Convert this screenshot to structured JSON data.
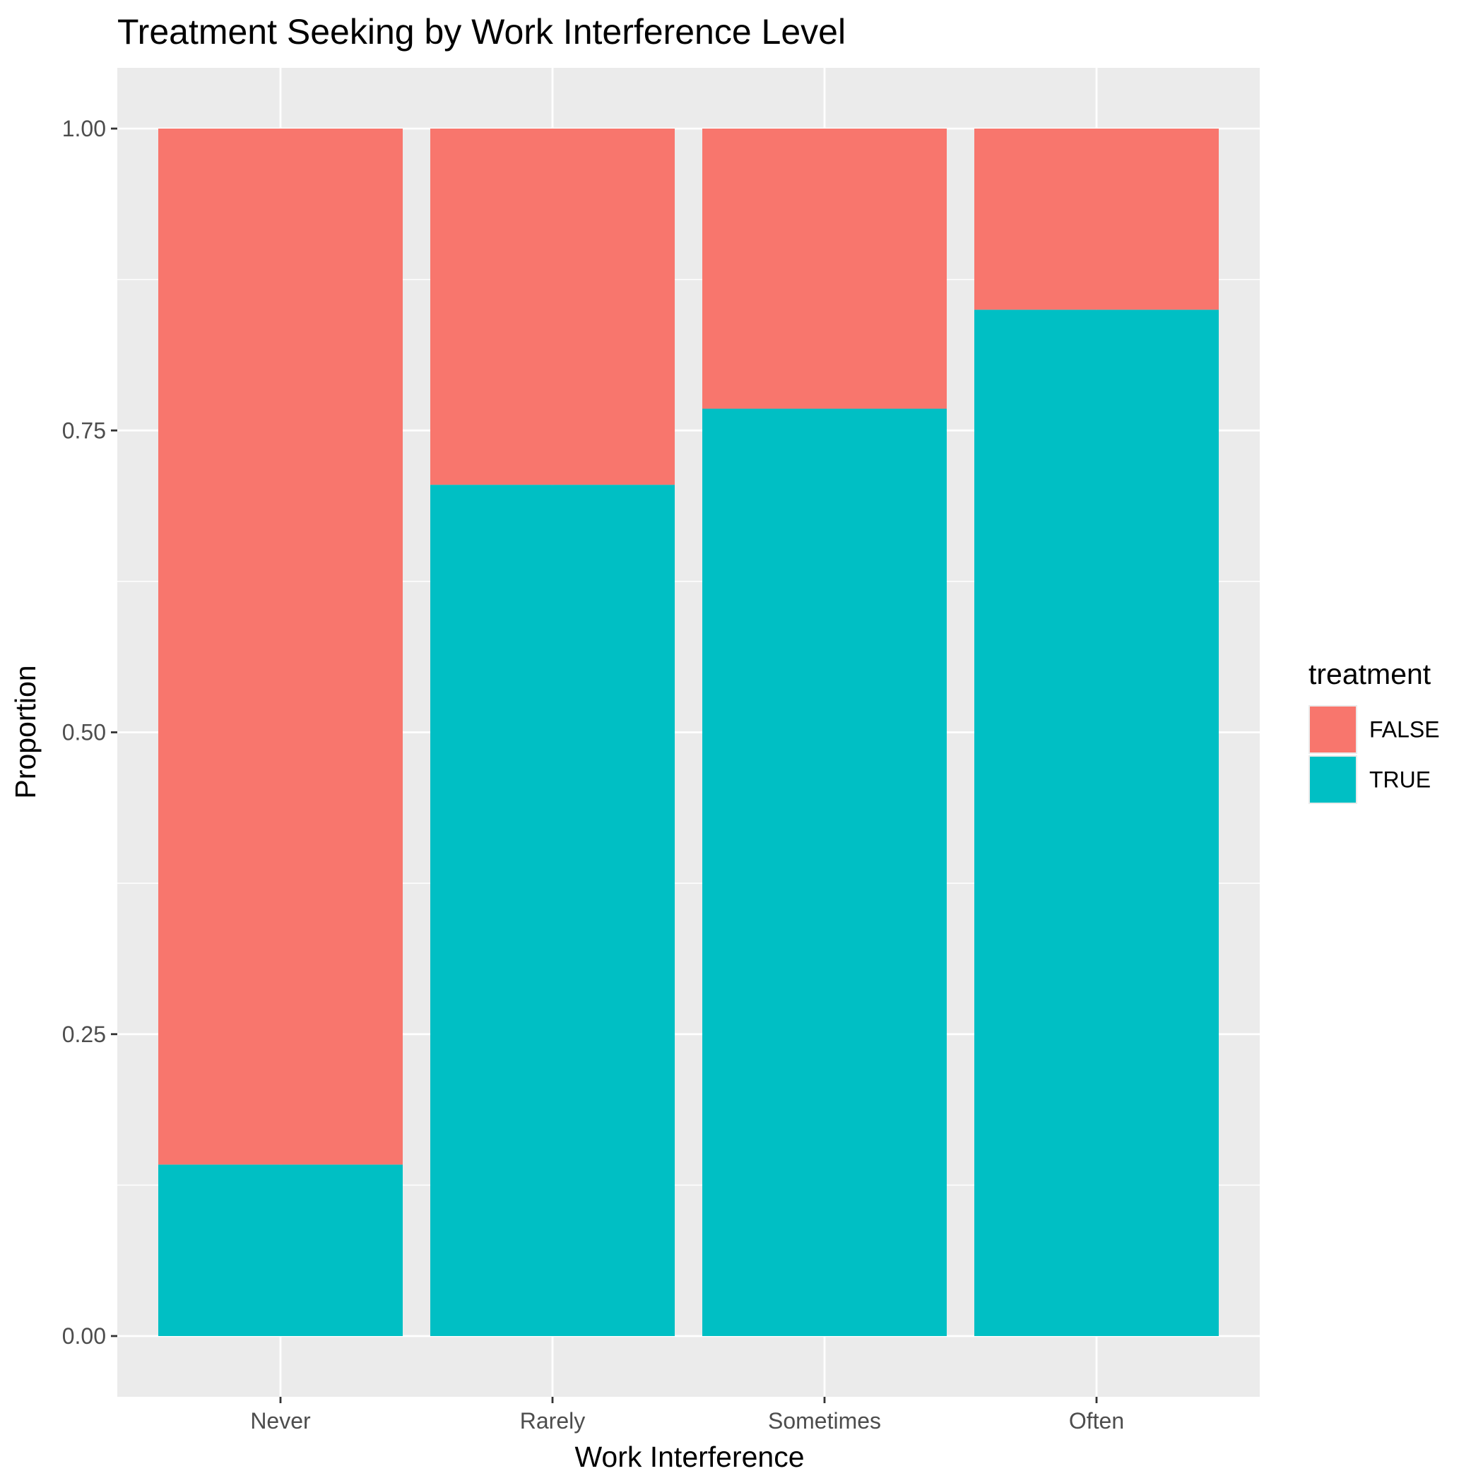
{
  "chart_data": {
    "type": "bar",
    "stacked": true,
    "title": "Treatment Seeking by Work Interference Level",
    "xlabel": "Work Interference",
    "ylabel": "Proportion",
    "categories": [
      "Never",
      "Rarely",
      "Sometimes",
      "Often"
    ],
    "series": [
      {
        "name": "FALSE",
        "color": "#F8766D",
        "values": [
          0.858,
          0.295,
          0.232,
          0.15
        ]
      },
      {
        "name": "TRUE",
        "color": "#00BFC4",
        "values": [
          0.142,
          0.705,
          0.768,
          0.85
        ]
      }
    ],
    "ylim": [
      0,
      1
    ],
    "yticks": [
      0.0,
      0.25,
      0.5,
      0.75,
      1.0
    ],
    "ytick_labels": [
      "0.00",
      "0.25",
      "0.50",
      "0.75",
      "1.00"
    ],
    "grid": true,
    "legend": {
      "title": "treatment",
      "position": "right",
      "entries": [
        "FALSE",
        "TRUE"
      ]
    },
    "panel_background": "#EBEBEB",
    "grid_color": "#FFFFFF"
  }
}
